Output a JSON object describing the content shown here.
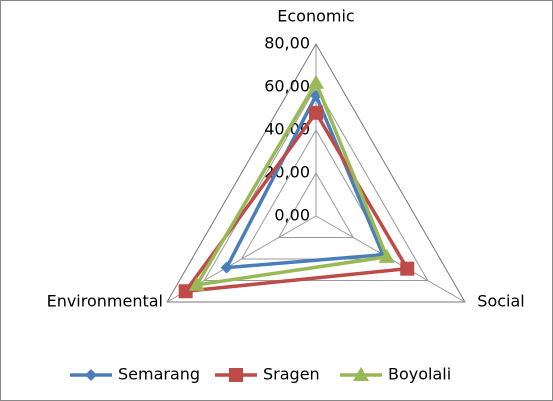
{
  "chart_data": {
    "type": "radar",
    "categories": [
      "Economic",
      "Social",
      "Environmental"
    ],
    "series": [
      {
        "name": "Semarang",
        "color": "#4a7ebb",
        "marker": "diamond",
        "values": [
          56,
          36,
          48
        ]
      },
      {
        "name": "Sragen",
        "color": "#be4b48",
        "marker": "square",
        "values": [
          48,
          49,
          70
        ]
      },
      {
        "name": "Boyolali",
        "color": "#98b954",
        "marker": "triangle",
        "values": [
          62,
          38,
          64
        ]
      }
    ],
    "rlim": [
      0,
      80
    ],
    "rticks": [
      {
        "value": 0,
        "label": "0,00"
      },
      {
        "value": 20,
        "label": "20,00"
      },
      {
        "value": 40,
        "label": "40,00"
      },
      {
        "value": 60,
        "label": "60,00"
      },
      {
        "value": 80,
        "label": "80,00"
      }
    ],
    "grid": true,
    "legend": "bottom"
  }
}
